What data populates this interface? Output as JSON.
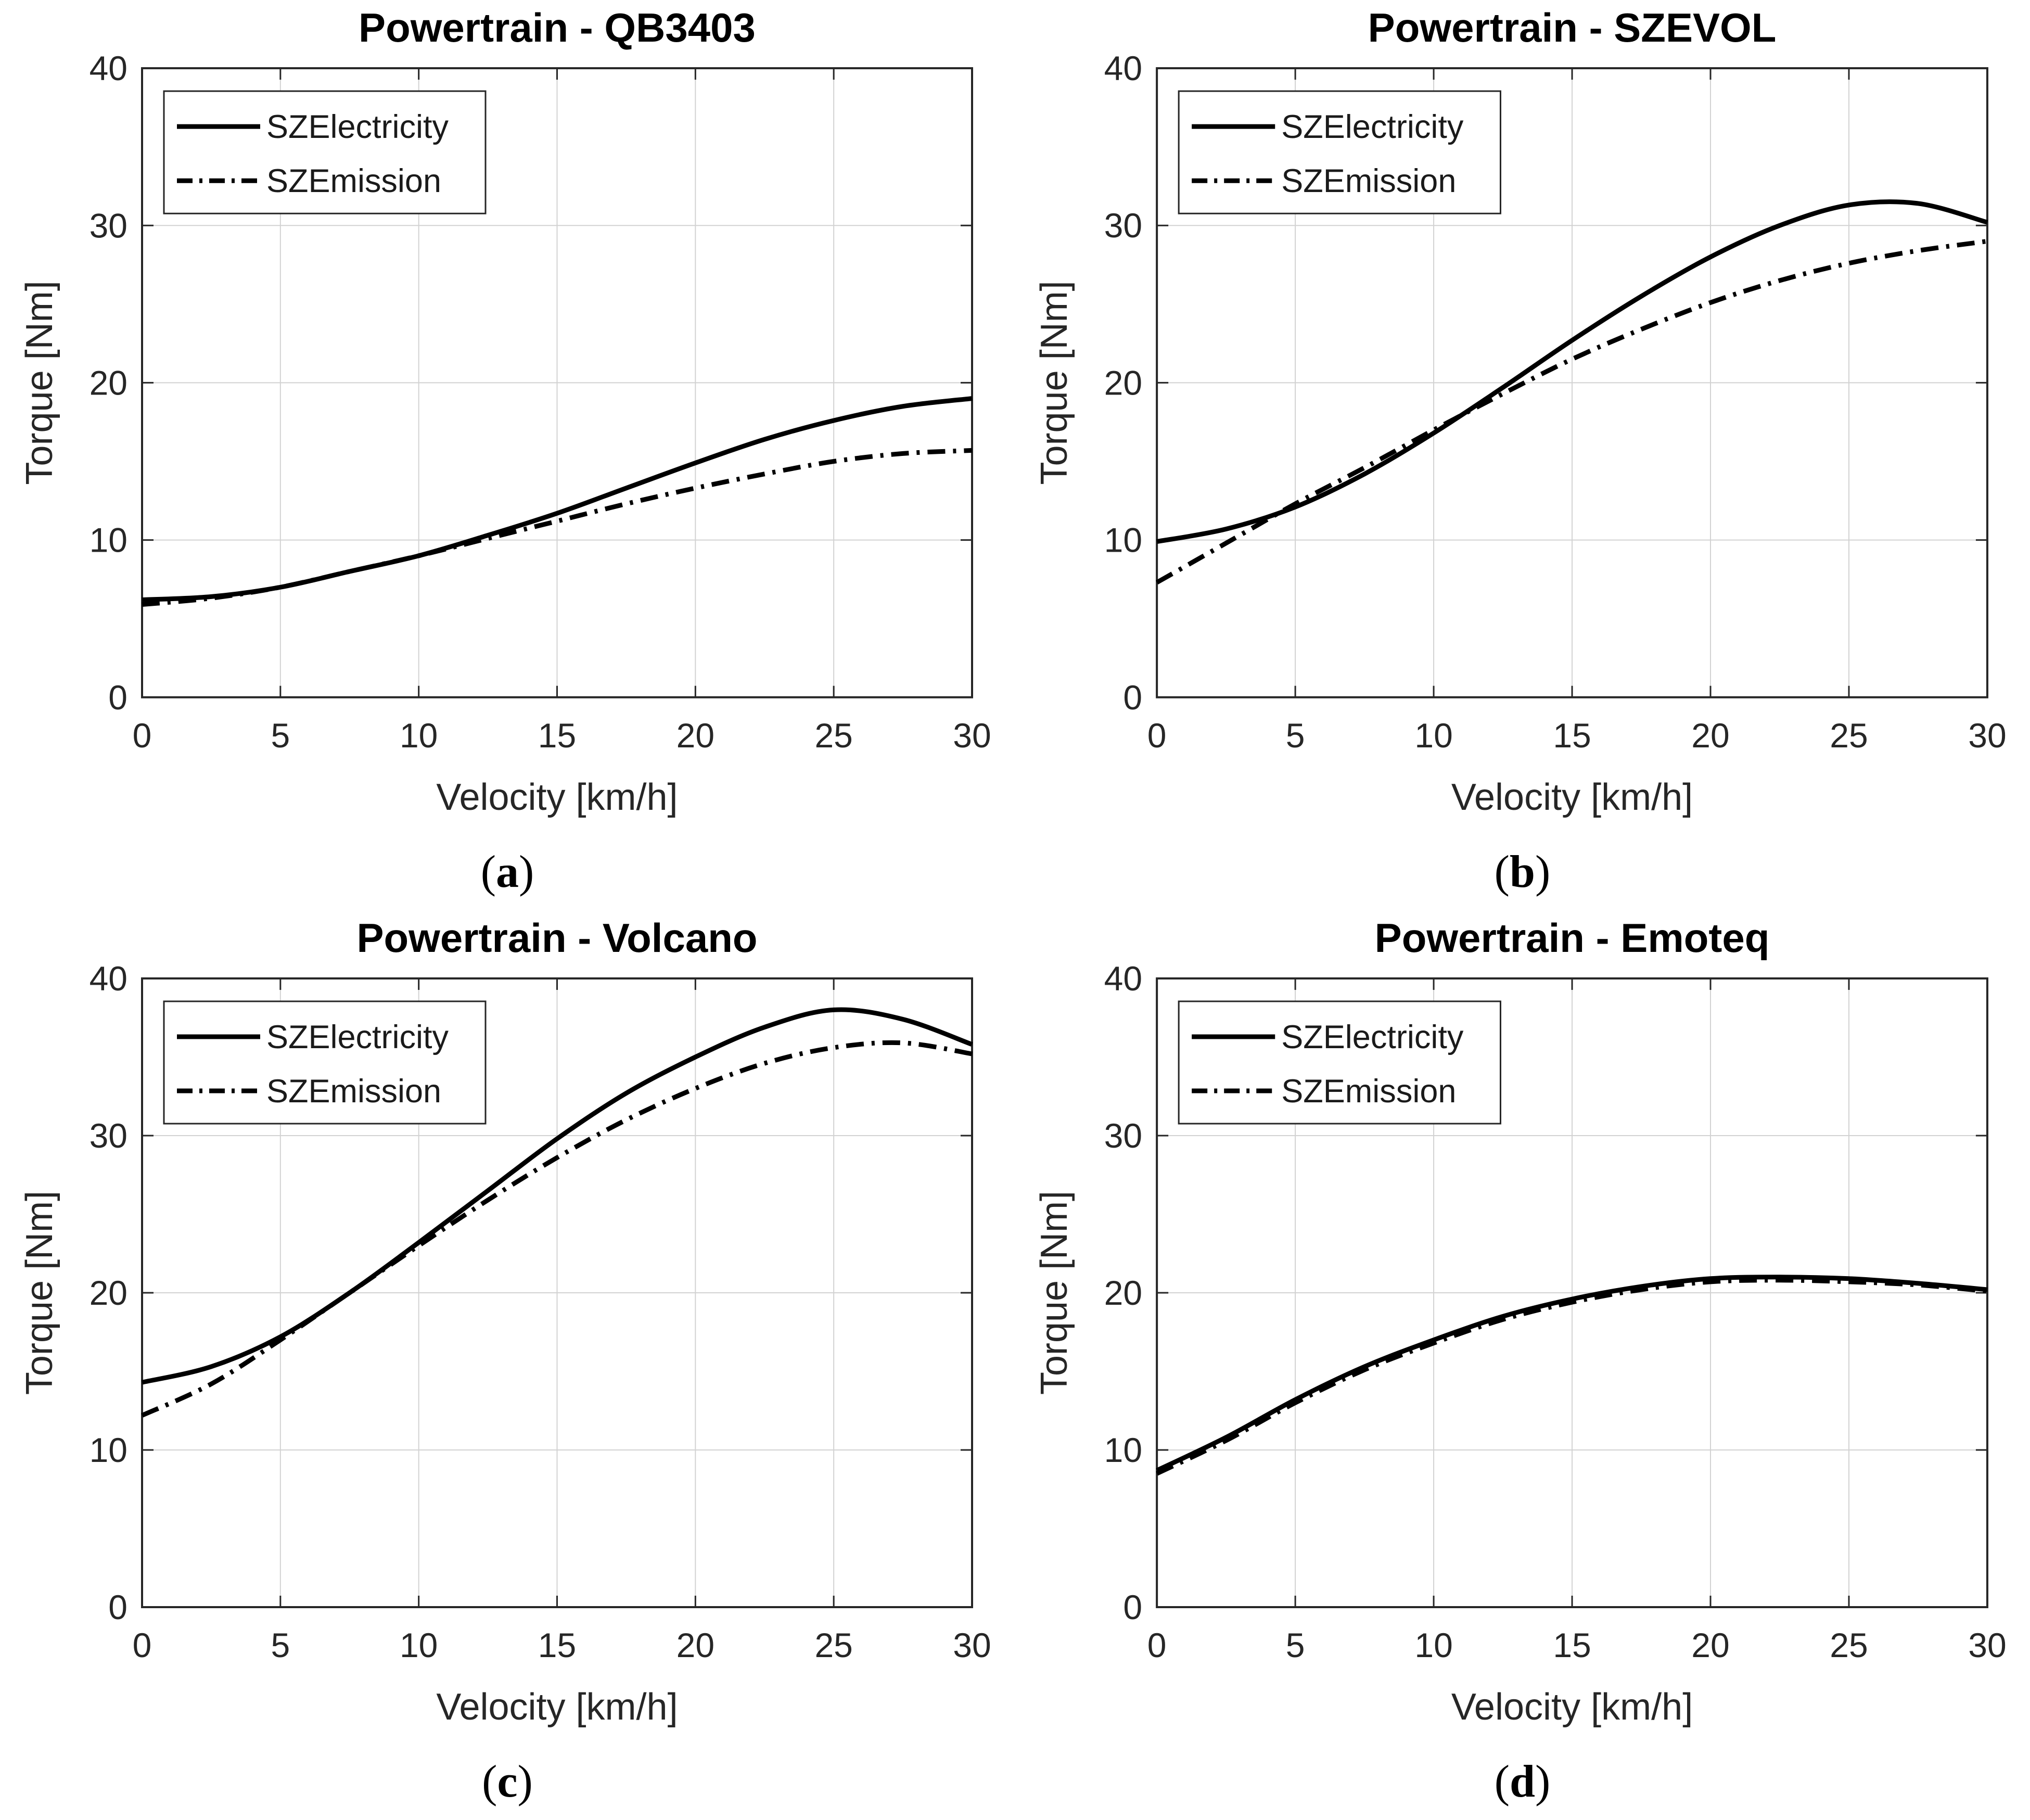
{
  "figure_title": "Powertrain torque-velocity comparison",
  "style": {
    "background": "#ffffff",
    "axis_color": "#262626",
    "grid_color": "#d2d2d2",
    "line_color": "#000000",
    "text_color": "#262626",
    "title_color": "#000000",
    "legend_bg": "#ffffff"
  },
  "chart_data": [
    {
      "type": "line",
      "title": "Powertrain - QB3403",
      "panel_label": "(a)",
      "xlabel": "Velocity [km/h]",
      "ylabel": "Torque [Nm]",
      "xlim": [
        0,
        30
      ],
      "ylim": [
        0,
        40
      ],
      "xticks": [
        0,
        5,
        10,
        15,
        20,
        25,
        30
      ],
      "yticks": [
        0,
        10,
        20,
        30,
        40
      ],
      "grid": true,
      "legend_position": "top-left",
      "x": [
        0,
        2.5,
        5,
        7.5,
        10,
        12.5,
        15,
        17.5,
        20,
        22.5,
        25,
        27.5,
        30
      ],
      "series": [
        {
          "name": "SZElectricity",
          "style": "solid",
          "values": [
            6.2,
            6.4,
            7.0,
            8.0,
            9.0,
            10.3,
            11.7,
            13.3,
            14.9,
            16.4,
            17.6,
            18.5,
            19.0
          ]
        },
        {
          "name": "SZEmission",
          "style": "dashdot",
          "values": [
            5.9,
            6.3,
            7.0,
            8.0,
            9.0,
            10.1,
            11.2,
            12.3,
            13.3,
            14.2,
            15.0,
            15.5,
            15.7
          ]
        }
      ]
    },
    {
      "type": "line",
      "title": "Powertrain - SZEVOL",
      "panel_label": "(b)",
      "xlabel": "Velocity [km/h]",
      "ylabel": "Torque [Nm]",
      "xlim": [
        0,
        30
      ],
      "ylim": [
        0,
        40
      ],
      "xticks": [
        0,
        5,
        10,
        15,
        20,
        25,
        30
      ],
      "yticks": [
        0,
        10,
        20,
        30,
        40
      ],
      "grid": true,
      "legend_position": "top-left",
      "x": [
        0,
        2.5,
        5,
        7.5,
        10,
        12.5,
        15,
        17.5,
        20,
        22.5,
        25,
        27.5,
        30
      ],
      "series": [
        {
          "name": "SZElectricity",
          "style": "solid",
          "values": [
            9.9,
            10.7,
            12.1,
            14.2,
            16.8,
            19.7,
            22.7,
            25.5,
            28.0,
            30.0,
            31.3,
            31.4,
            30.2
          ]
        },
        {
          "name": "SZEmission",
          "style": "dashdot",
          "values": [
            7.3,
            9.8,
            12.3,
            14.6,
            17.0,
            19.3,
            21.5,
            23.4,
            25.1,
            26.5,
            27.6,
            28.4,
            29.0
          ]
        }
      ]
    },
    {
      "type": "line",
      "title": "Powertrain - Volcano",
      "panel_label": "(c)",
      "xlabel": "Velocity [km/h]",
      "ylabel": "Torque [Nm]",
      "xlim": [
        0,
        30
      ],
      "ylim": [
        0,
        40
      ],
      "xticks": [
        0,
        5,
        10,
        15,
        20,
        25,
        30
      ],
      "yticks": [
        0,
        10,
        20,
        30,
        40
      ],
      "grid": true,
      "legend_position": "top-left",
      "x": [
        0,
        2.5,
        5,
        7.5,
        10,
        12.5,
        15,
        17.5,
        20,
        22.5,
        25,
        27.5,
        30
      ],
      "series": [
        {
          "name": "SZElectricity",
          "style": "solid",
          "values": [
            14.3,
            15.3,
            17.2,
            20.0,
            23.2,
            26.5,
            29.8,
            32.7,
            35.0,
            36.9,
            38.0,
            37.4,
            35.8
          ]
        },
        {
          "name": "SZEmission",
          "style": "dashdot",
          "values": [
            12.2,
            14.2,
            17.0,
            20.0,
            23.0,
            25.9,
            28.6,
            31.0,
            33.0,
            34.6,
            35.6,
            35.9,
            35.2
          ]
        }
      ]
    },
    {
      "type": "line",
      "title": "Powertrain - Emoteq",
      "panel_label": "(d)",
      "xlabel": "Velocity [km/h]",
      "ylabel": "Torque [Nm]",
      "xlim": [
        0,
        30
      ],
      "ylim": [
        0,
        40
      ],
      "xticks": [
        0,
        5,
        10,
        15,
        20,
        25,
        30
      ],
      "yticks": [
        0,
        10,
        20,
        30,
        40
      ],
      "grid": true,
      "legend_position": "top-left",
      "x": [
        0,
        2.5,
        5,
        7.5,
        10,
        12.5,
        15,
        17.5,
        20,
        22.5,
        25,
        27.5,
        30
      ],
      "series": [
        {
          "name": "SZElectricity",
          "style": "solid",
          "values": [
            8.7,
            10.8,
            13.2,
            15.3,
            17.0,
            18.5,
            19.6,
            20.4,
            20.9,
            21.0,
            20.9,
            20.6,
            20.2
          ]
        },
        {
          "name": "SZEmission",
          "style": "dashdot",
          "values": [
            8.5,
            10.6,
            13.0,
            15.1,
            16.8,
            18.3,
            19.4,
            20.2,
            20.7,
            20.8,
            20.7,
            20.5,
            20.1
          ]
        }
      ]
    }
  ]
}
